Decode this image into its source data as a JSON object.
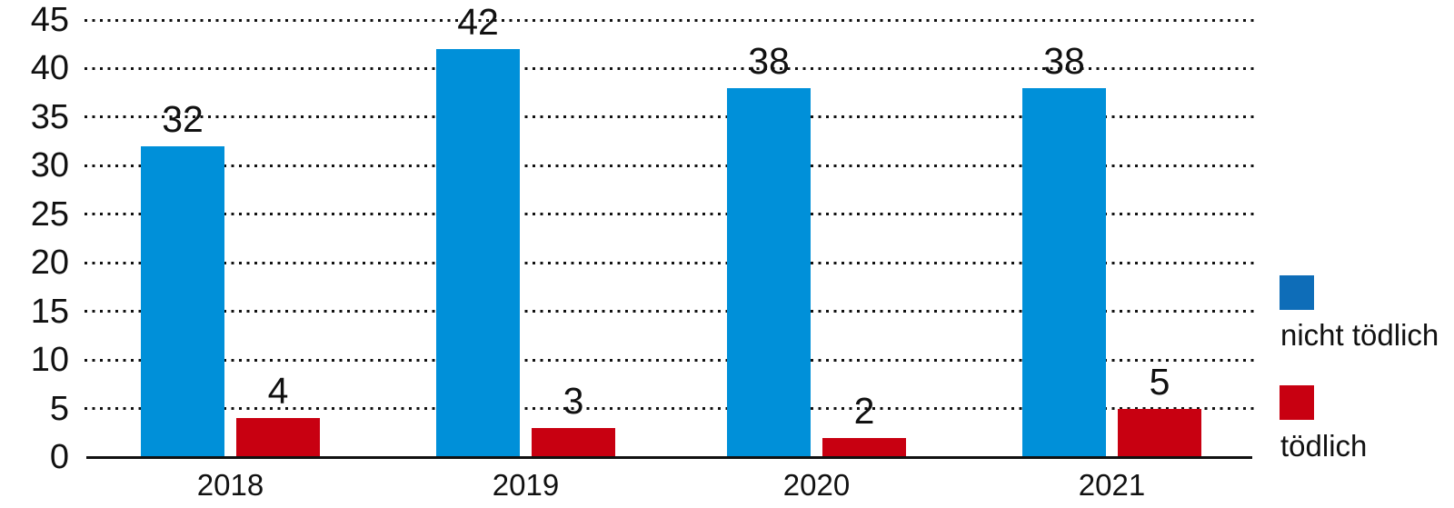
{
  "chart_data": {
    "type": "bar",
    "title": "",
    "categories": [
      "2018",
      "2019",
      "2020",
      "2021"
    ],
    "series": [
      {
        "name": "nicht tödlich",
        "values": [
          32,
          42,
          38,
          38
        ],
        "color": "#0090D9",
        "legend_color": "#0E6DB8"
      },
      {
        "name": "tödlich",
        "values": [
          4,
          3,
          2,
          5
        ],
        "color": "#C80011",
        "legend_color": "#C80011"
      }
    ],
    "xlabel": "",
    "ylabel": "",
    "ylim": [
      0,
      45
    ],
    "yticks": [
      0,
      5,
      10,
      15,
      20,
      25,
      30,
      35,
      40,
      45
    ],
    "grid": "dotted-horizontal",
    "legend_position": "right",
    "value_labels_shown": true
  },
  "legend": {
    "items": [
      {
        "label": "nicht tödlich",
        "color": "#0E6DB8"
      },
      {
        "label": "tödlich",
        "color": "#C80011"
      }
    ]
  },
  "colors": {
    "background": "#FFFFFF",
    "text": "#111111",
    "grid_dots": "#111111",
    "axis_line": "#111111",
    "bar_blue": "#0090D9",
    "bar_red": "#C80011",
    "legend_blue": "#0E6DB8",
    "legend_red": "#C80011"
  }
}
